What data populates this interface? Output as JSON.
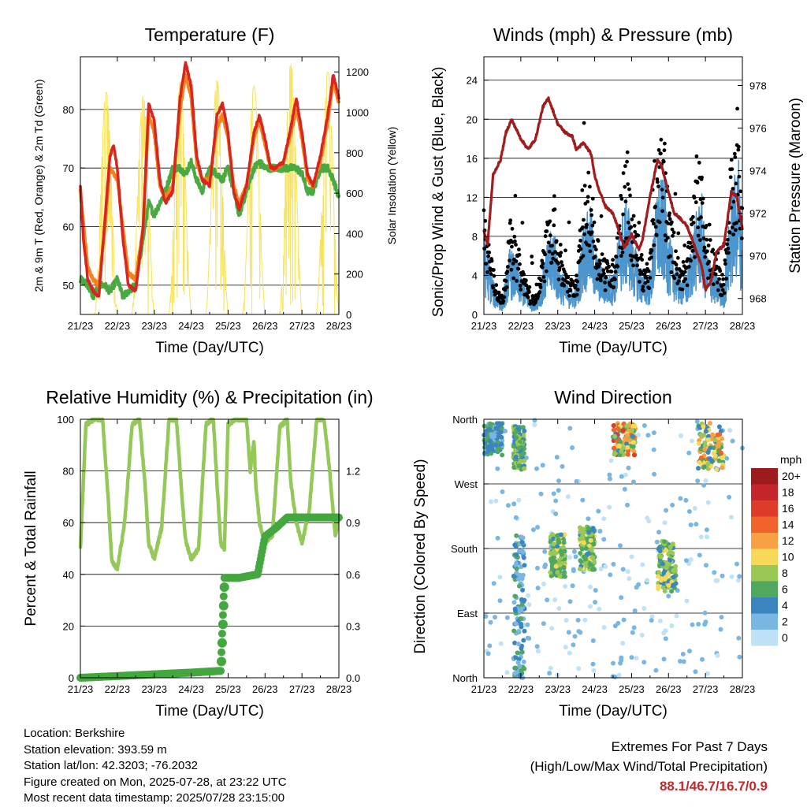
{
  "colors": {
    "temp_2m": "#d7261e",
    "temp_9m": "#f6821f",
    "dewpoint": "#4aaa42",
    "solar": "#f7e35d",
    "wind": "#4d95cd",
    "gust": "#000000",
    "pressure": "#a01d1f",
    "rh": "#94c95a",
    "precip": "#43a83f",
    "extremes": "#c0282b"
  },
  "time_ticks": [
    "21/23",
    "22/23",
    "23/23",
    "24/23",
    "25/23",
    "26/23",
    "27/23",
    "28/23"
  ],
  "panels": {
    "temperature": {
      "title": "Temperature (F)",
      "xlabel": "Time (Day/UTC)",
      "ylabel_left": "2m & 9m T (Red, Orange) & 2m Td (Green)",
      "ylabel_right": "Solar Insolation (Yellow)",
      "left_ticks": [
        "50",
        "60",
        "70",
        "80"
      ],
      "right_ticks": [
        "0",
        "200",
        "400",
        "600",
        "800",
        "1000",
        "1200"
      ]
    },
    "winds": {
      "title": "Winds (mph) & Pressure (mb)",
      "xlabel": "Time (Day/UTC)",
      "ylabel_left": "Sonic/Prop Wind & Gust (Blue, Black)",
      "ylabel_right": "Station Pressure (Maroon)",
      "left_ticks": [
        "0",
        "4",
        "8",
        "12",
        "16",
        "20",
        "24"
      ],
      "right_ticks": [
        "968",
        "970",
        "972",
        "974",
        "976",
        "978"
      ]
    },
    "humidity": {
      "title": "Relative Humidity (%) & Precipitation (in)",
      "xlabel": "Time (Day/UTC)",
      "ylabel_left": "Percent & Total Rainfall",
      "left_ticks": [
        "0",
        "20",
        "40",
        "60",
        "80",
        "100"
      ],
      "right_ticks": [
        "0.0",
        "0.3",
        "0.6",
        "0.9",
        "1.2"
      ]
    },
    "direction": {
      "title": "Wind Direction",
      "xlabel": "Time (Day/UTC)",
      "ylabel_left": "Direction (Colored By Speed)",
      "left_ticks": [
        "North",
        "East",
        "South",
        "West",
        "North"
      ],
      "legend_title": "mph",
      "legend_labels": [
        "20+",
        "18",
        "16",
        "14",
        "12",
        "10",
        "8",
        "6",
        "4",
        "2",
        "0"
      ],
      "legend_colors": [
        "#9b1b1e",
        "#c4262b",
        "#df3b2b",
        "#f0642b",
        "#f8a143",
        "#f7d95a",
        "#9ac855",
        "#4fa85e",
        "#3b86c1",
        "#79b6e1",
        "#bfe2f7"
      ]
    }
  },
  "chart_data": [
    {
      "type": "line",
      "title": "Temperature (F)",
      "xlabel": "Time (Day/UTC)",
      "ylabel": "2m & 9m T (Red, Orange) & 2m Td (Green)",
      "y2label": "Solar Insolation (Yellow)",
      "x_unit": "days since 21/23",
      "xlim": [
        0,
        7
      ],
      "ylim": [
        45,
        89
      ],
      "y2lim": [
        0,
        1275
      ],
      "series": [
        {
          "name": "2m T",
          "axis": "left",
          "x": [
            0,
            0.08,
            0.2,
            0.35,
            0.5,
            0.65,
            0.8,
            0.9,
            1.0,
            1.15,
            1.3,
            1.5,
            1.7,
            1.85,
            2.0,
            2.15,
            2.3,
            2.5,
            2.7,
            2.85,
            3.0,
            3.15,
            3.3,
            3.5,
            3.7,
            3.85,
            4.0,
            4.15,
            4.3,
            4.5,
            4.7,
            4.85,
            5.0,
            5.15,
            5.3,
            5.5,
            5.7,
            5.85,
            6.0,
            6.15,
            6.3,
            6.5,
            6.7,
            6.85,
            7.0
          ],
          "y": [
            67,
            58,
            51,
            49,
            48,
            60,
            72,
            74,
            70,
            58,
            50,
            49,
            60,
            81,
            78,
            68,
            64,
            66,
            82,
            88,
            84,
            72,
            68,
            67,
            79,
            81,
            76,
            66,
            63,
            67,
            76,
            79,
            75,
            70,
            70,
            71,
            77,
            82,
            76,
            69,
            67,
            72,
            79,
            86,
            82
          ]
        },
        {
          "name": "9m T",
          "axis": "left",
          "x": [
            0,
            0.2,
            0.35,
            0.5,
            0.65,
            0.8,
            1.0,
            1.15,
            1.3,
            1.5,
            1.7,
            1.85,
            2.0,
            2.15,
            2.3,
            2.5,
            2.7,
            2.85,
            3.0,
            3.15,
            3.3,
            3.5,
            3.7,
            3.85,
            4.0,
            4.15,
            4.3,
            4.5,
            4.7,
            4.85,
            5.0,
            5.15,
            5.3,
            5.5,
            5.7,
            5.85,
            6.0,
            6.15,
            6.3,
            6.5,
            6.7,
            6.85,
            7.0
          ],
          "y": [
            66,
            53,
            51,
            50,
            59,
            70,
            68,
            60,
            52,
            51,
            60,
            79,
            76,
            67,
            65,
            67,
            80,
            86,
            82,
            71,
            68,
            68,
            77,
            79,
            75,
            67,
            64,
            67,
            75,
            78,
            74,
            70,
            70,
            71,
            76,
            80,
            75,
            68,
            67,
            71,
            78,
            85,
            81
          ]
        },
        {
          "name": "2m Td",
          "axis": "left",
          "x": [
            0,
            0.2,
            0.35,
            0.5,
            0.65,
            0.8,
            1.0,
            1.15,
            1.3,
            1.5,
            1.7,
            1.85,
            2.0,
            2.15,
            2.3,
            2.5,
            2.7,
            2.85,
            3.0,
            3.15,
            3.3,
            3.5,
            3.7,
            3.85,
            4.0,
            4.15,
            4.3,
            4.5,
            4.7,
            4.85,
            5.0,
            5.15,
            5.3,
            5.5,
            5.7,
            5.85,
            6.0,
            6.15,
            6.3,
            6.5,
            6.7,
            6.85,
            7.0
          ],
          "y": [
            51,
            50,
            48,
            50,
            50,
            49,
            51,
            48,
            49,
            50,
            58,
            64,
            62,
            64,
            66,
            70,
            70,
            69,
            71,
            68,
            66,
            70,
            69,
            68,
            70,
            66,
            62,
            66,
            70,
            71,
            70,
            70,
            70,
            70,
            70,
            70,
            69,
            66,
            66,
            70,
            70,
            68,
            65
          ]
        },
        {
          "name": "Solar Insolation",
          "axis": "right",
          "peaks_x": [
            0.7,
            1.7,
            2.7,
            3.7,
            4.7,
            5.7,
            6.7
          ],
          "peak_values": [
            1100,
            1080,
            1150,
            1160,
            1130,
            1240,
            1200
          ]
        }
      ]
    },
    {
      "type": "line",
      "title": "Winds (mph) & Pressure (mb)",
      "xlabel": "Time (Day/UTC)",
      "ylabel": "Sonic/Prop Wind & Gust (Blue, Black)",
      "y2label": "Station Pressure (Maroon)",
      "x_unit": "days since 21/23",
      "xlim": [
        0,
        7
      ],
      "ylim": [
        0,
        26.4
      ],
      "y2lim": [
        967.25,
        979.35
      ],
      "series": [
        {
          "name": "Station Pressure",
          "axis": "right",
          "x": [
            0,
            0.1,
            0.25,
            0.45,
            0.6,
            0.75,
            1.0,
            1.2,
            1.4,
            1.6,
            1.75,
            2.0,
            2.2,
            2.4,
            2.5,
            2.7,
            2.9,
            3.0,
            3.1,
            3.3,
            3.5,
            3.8,
            4.0,
            4.2,
            4.3,
            4.5,
            4.7,
            4.8,
            5.0,
            5.15,
            5.3,
            5.5,
            5.7,
            5.9,
            6.0,
            6.15,
            6.3,
            6.5,
            6.7,
            6.85,
            7.0
          ],
          "y": [
            971.2,
            970.5,
            973.8,
            974.5,
            975.8,
            976.4,
            975.5,
            975.0,
            975.5,
            977.0,
            977.4,
            976.2,
            975.8,
            975.6,
            975.0,
            975.3,
            974.8,
            973.8,
            973.2,
            972.3,
            972.0,
            970.4,
            971.0,
            970.3,
            970.8,
            972.8,
            974.5,
            974.3,
            973.0,
            972.0,
            971.8,
            971.4,
            970.5,
            969.5,
            968.4,
            968.8,
            970.2,
            970.5,
            973.0,
            972.8,
            971.3
          ]
        },
        {
          "name": "Wind",
          "axis": "left",
          "x": [
            0,
            0.3,
            0.5,
            0.7,
            0.9,
            1.0,
            1.3,
            1.5,
            1.7,
            1.9,
            2.0,
            2.3,
            2.5,
            2.7,
            2.9,
            3.0,
            3.3,
            3.5,
            3.7,
            3.9,
            4.0,
            4.3,
            4.5,
            4.7,
            4.9,
            5.0,
            5.3,
            5.5,
            5.7,
            5.9,
            6.0,
            6.3,
            6.5,
            6.7,
            6.9,
            7.0
          ],
          "y": [
            6,
            2,
            1,
            5,
            4,
            3,
            1,
            2,
            5,
            7,
            4,
            2,
            2,
            7,
            8,
            5,
            3,
            3,
            7,
            9,
            6,
            3,
            3,
            10,
            10,
            6,
            3,
            3,
            7,
            9,
            5,
            3,
            2,
            9,
            12,
            5
          ]
        },
        {
          "name": "Gust",
          "axis": "left",
          "x": [
            0.7,
            1.9,
            2.8,
            3.8,
            4.7,
            4.8,
            5.5,
            6.7,
            6.75
          ],
          "y": [
            10,
            12,
            16,
            16,
            22,
            20,
            18,
            23,
            24
          ]
        }
      ]
    },
    {
      "type": "line",
      "title": "Relative Humidity (%) & Precipitation (in)",
      "xlabel": "Time (Day/UTC)",
      "ylabel": "Percent & Total Rainfall",
      "x_unit": "days since 21/23",
      "xlim": [
        0,
        7
      ],
      "ylim": [
        0,
        100
      ],
      "y2lim": [
        0,
        1.5
      ],
      "series": [
        {
          "name": "Relative Humidity",
          "axis": "left",
          "x": [
            0,
            0.15,
            0.4,
            0.6,
            0.75,
            0.85,
            1.0,
            1.2,
            1.4,
            1.6,
            1.75,
            1.85,
            2.0,
            2.2,
            2.4,
            2.6,
            2.75,
            2.85,
            3.0,
            3.2,
            3.4,
            3.6,
            3.7,
            3.8,
            3.9,
            4.0,
            4.2,
            4.5,
            4.6,
            4.7,
            4.75,
            4.85,
            5.0,
            5.2,
            5.4,
            5.6,
            5.7,
            5.85,
            6.0,
            6.2,
            6.4,
            6.6,
            6.75,
            6.9,
            7.0
          ],
          "y": [
            50,
            98,
            100,
            100,
            70,
            45,
            42,
            60,
            98,
            100,
            75,
            52,
            46,
            58,
            100,
            100,
            70,
            53,
            46,
            50,
            98,
            100,
            75,
            52,
            50,
            98,
            100,
            100,
            80,
            92,
            75,
            60,
            52,
            55,
            97,
            100,
            75,
            60,
            52,
            65,
            100,
            100,
            80,
            55,
            62
          ]
        },
        {
          "name": "Total Rainfall",
          "axis": "right",
          "x": [
            0,
            1,
            2,
            3,
            3.8,
            3.9,
            4.3,
            4.8,
            5.0,
            5.3,
            5.6,
            7.0
          ],
          "y": [
            0.0,
            0.01,
            0.02,
            0.03,
            0.04,
            0.58,
            0.58,
            0.6,
            0.82,
            0.87,
            0.93,
            0.93
          ]
        }
      ]
    },
    {
      "type": "scatter",
      "title": "Wind Direction",
      "xlabel": "Time (Day/UTC)",
      "ylabel": "Direction (Colored By Speed)",
      "x_unit": "days since 21/23",
      "xlim": [
        0,
        7
      ],
      "ylim": [
        0,
        360
      ],
      "color_by": "speed (mph)",
      "clusters": [
        {
          "x": [
            0.0,
            0.5
          ],
          "dir": [
            310,
            355
          ],
          "speed": [
            2,
            6
          ]
        },
        {
          "x": [
            0.8,
            1.1
          ],
          "dir": [
            290,
            350
          ],
          "speed": [
            3,
            9
          ]
        },
        {
          "x": [
            0.8,
            1.1
          ],
          "dir": [
            0,
            200
          ],
          "speed": [
            1,
            6
          ]
        },
        {
          "x": [
            1.8,
            2.2
          ],
          "dir": [
            140,
            200
          ],
          "speed": [
            4,
            10
          ]
        },
        {
          "x": [
            2.6,
            3.0
          ],
          "dir": [
            150,
            210
          ],
          "speed": [
            4,
            10
          ]
        },
        {
          "x": [
            3.5,
            4.1
          ],
          "dir": [
            310,
            355
          ],
          "speed": [
            4,
            16
          ]
        },
        {
          "x": [
            4.7,
            5.2
          ],
          "dir": [
            120,
            190
          ],
          "speed": [
            3,
            10
          ]
        },
        {
          "x": [
            5.8,
            6.5
          ],
          "dir": [
            290,
            355
          ],
          "speed": [
            3,
            14
          ]
        }
      ]
    }
  ],
  "footer": {
    "location": "Location: Berkshire",
    "elevation": "Station elevation: 393.59 m",
    "latlon": "Station lat/lon: 42.3203; -76.2032",
    "created": "Figure created on Mon, 2025-07-28, at 23:22 UTC",
    "recent": "Most recent data timestamp: 2025/07/28 23:15:00",
    "extremes_title": "Extremes For Past 7 Days",
    "extremes_subtitle": "(High/Low/Max Wind/Total Precipitation)",
    "extremes_values": "88.1/46.7/16.7/0.9"
  }
}
